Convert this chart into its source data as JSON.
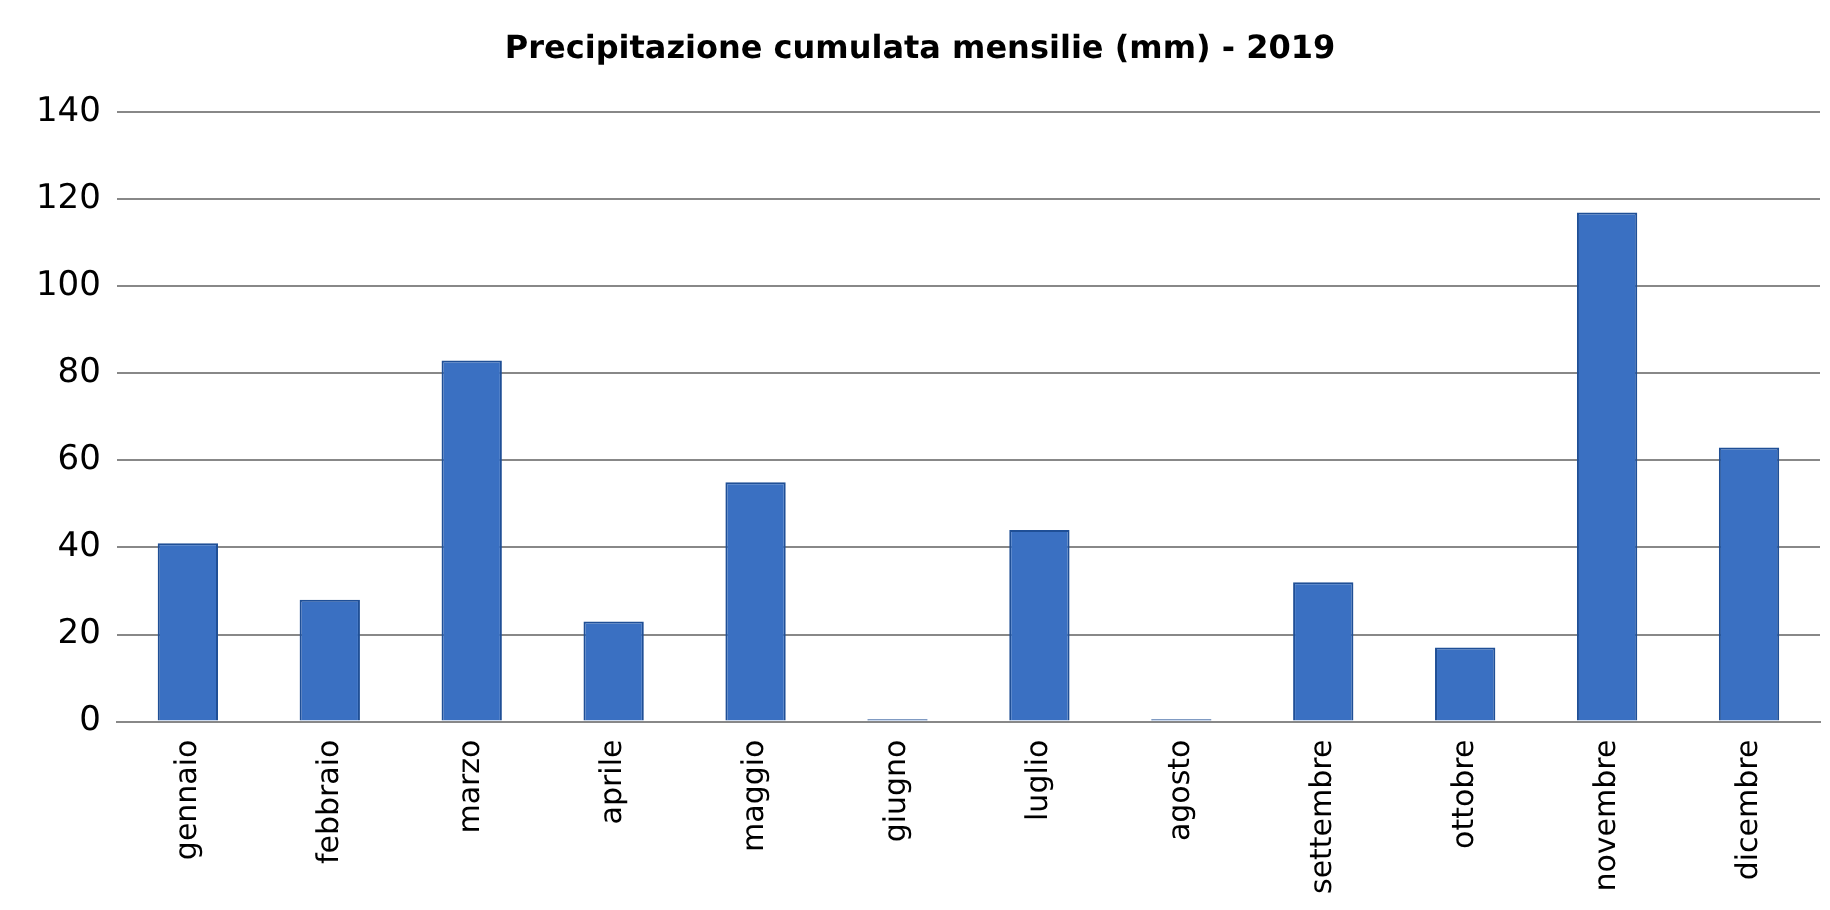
{
  "chart_data": {
    "type": "bar",
    "title": "Precipitazione cumulata mensilie (mm) - 2019",
    "categories": [
      "gennaio",
      "febbraio",
      "marzo",
      "aprile",
      "maggio",
      "giugno",
      "luglio",
      "agosto",
      "settembre",
      "ottobre",
      "novembre",
      "dicembre"
    ],
    "values": [
      41,
      28,
      83,
      23,
      55,
      0.5,
      44,
      0.5,
      32,
      17,
      117,
      63
    ],
    "color": "#3a70c2",
    "ylim": [
      0,
      140
    ],
    "yticks": [
      0,
      20,
      40,
      60,
      80,
      100,
      120,
      140
    ],
    "grid": "y"
  }
}
